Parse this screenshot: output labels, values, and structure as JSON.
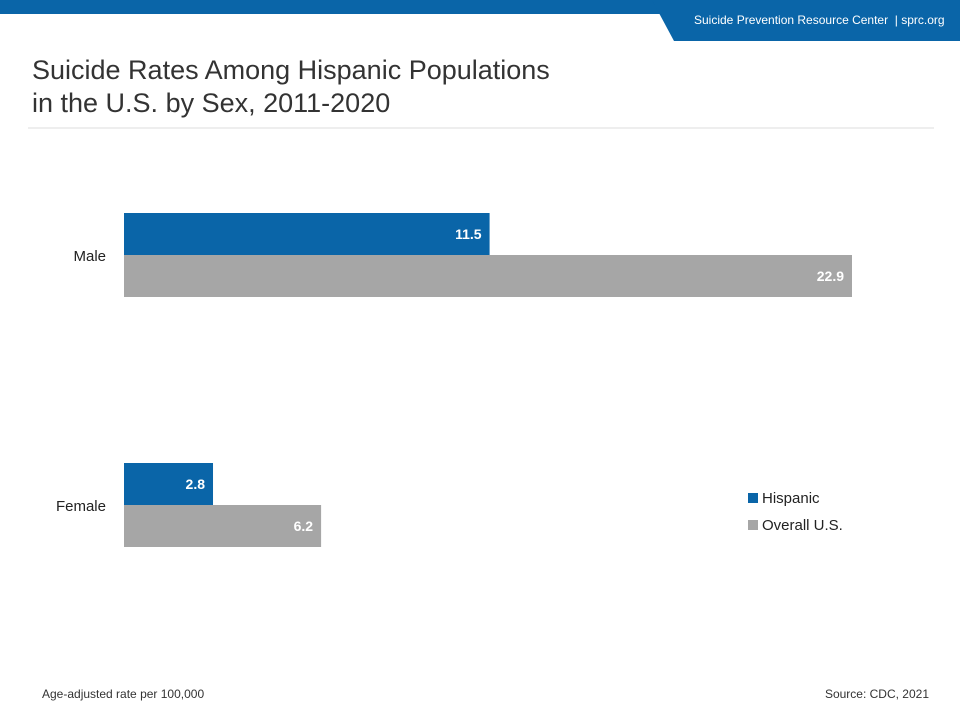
{
  "header": {
    "org": "Suicide Prevention Resource Center",
    "separator": "|",
    "site": "sprc.org"
  },
  "title": {
    "line1": "Suicide Rates Among Hispanic Populations",
    "line2": "in the U.S. by Sex, 2011-2020"
  },
  "colors": {
    "hispanic": "#0a65a8",
    "overall": "#a6a6a6",
    "brand": "#0a65a8"
  },
  "chart_data": {
    "type": "bar",
    "orientation": "horizontal",
    "categories": [
      "Male",
      "Female"
    ],
    "series": [
      {
        "name": "Hispanic",
        "values": [
          11.5,
          2.8
        ]
      },
      {
        "name": "Overall U.S.",
        "values": [
          22.9,
          6.2
        ]
      }
    ],
    "xlim": [
      0,
      22.9
    ],
    "grid": false,
    "legend_position": "right",
    "unit_note": "Age-adjusted rate per 100,000"
  },
  "footer": {
    "note": "Age-adjusted rate per 100,000",
    "source": "Source: CDC, 2021"
  }
}
